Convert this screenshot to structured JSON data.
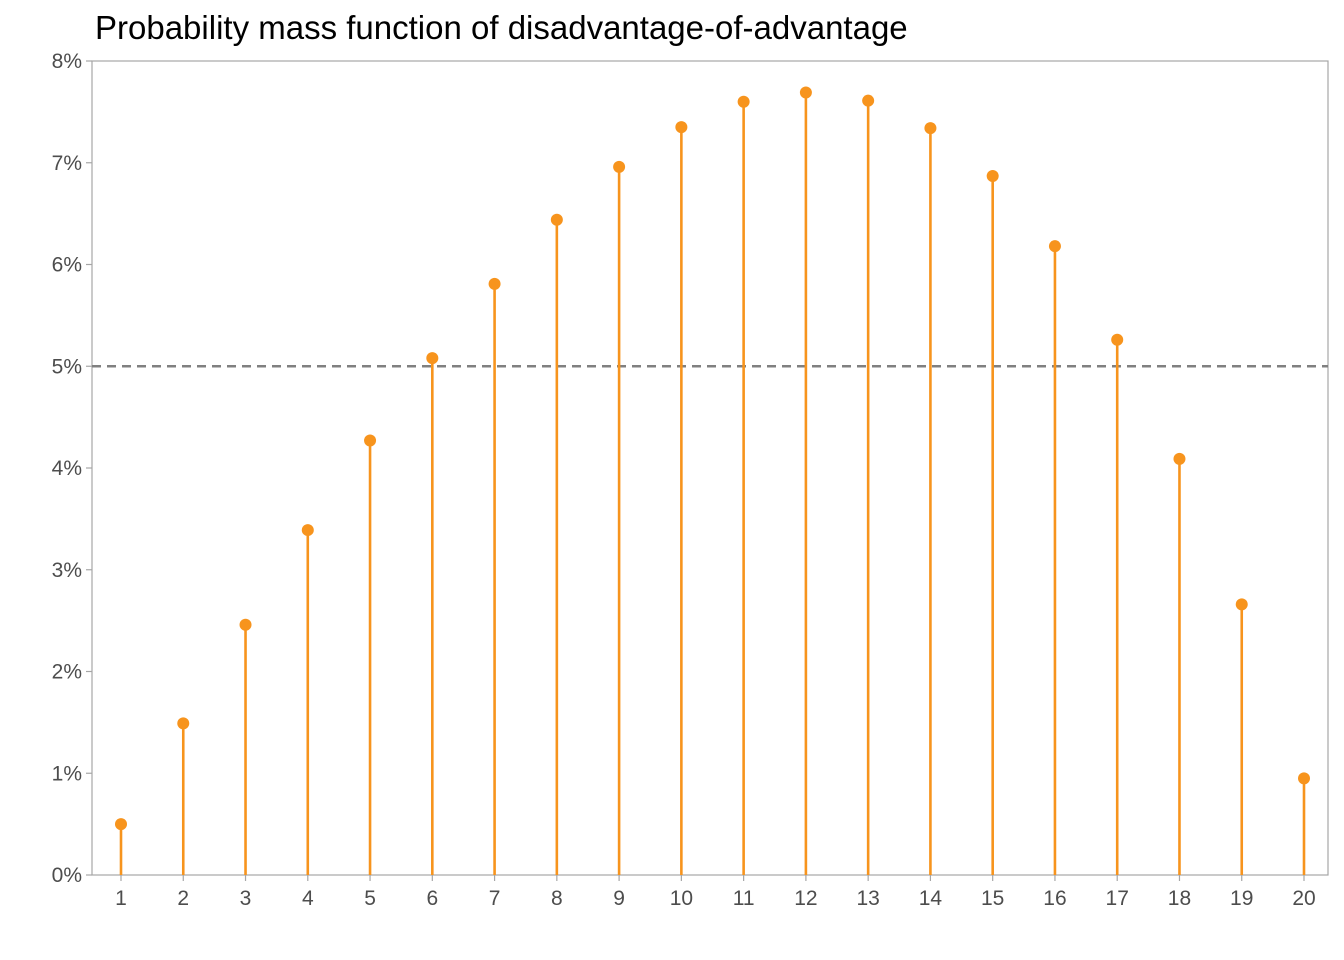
{
  "chart_data": {
    "type": "lollipop",
    "title": "Probability mass function of disadvantage-of-advantage",
    "xlabel": "",
    "ylabel": "",
    "x": [
      1,
      2,
      3,
      4,
      5,
      6,
      7,
      8,
      9,
      10,
      11,
      12,
      13,
      14,
      15,
      16,
      17,
      18,
      19,
      20
    ],
    "values": [
      0.5,
      1.49,
      2.46,
      3.39,
      4.27,
      5.08,
      5.81,
      6.44,
      6.96,
      7.35,
      7.6,
      7.69,
      7.61,
      7.34,
      6.87,
      6.18,
      5.26,
      4.09,
      2.66,
      0.95
    ],
    "y_unit": "%",
    "ylim": [
      0,
      8
    ],
    "y_ticks": [
      "0%",
      "1%",
      "2%",
      "3%",
      "4%",
      "5%",
      "6%",
      "7%",
      "8%"
    ],
    "x_ticks": [
      "1",
      "2",
      "3",
      "4",
      "5",
      "6",
      "7",
      "8",
      "9",
      "10",
      "11",
      "12",
      "13",
      "14",
      "15",
      "16",
      "17",
      "18",
      "19",
      "20"
    ],
    "reference_line": {
      "y": 5,
      "style": "dashed",
      "color": "#808080"
    },
    "grid": false,
    "colors": {
      "stem": "#f7941d",
      "point": "#f7941d",
      "axis": "#a6a6a6",
      "tick_text": "#4d4d4d"
    }
  }
}
